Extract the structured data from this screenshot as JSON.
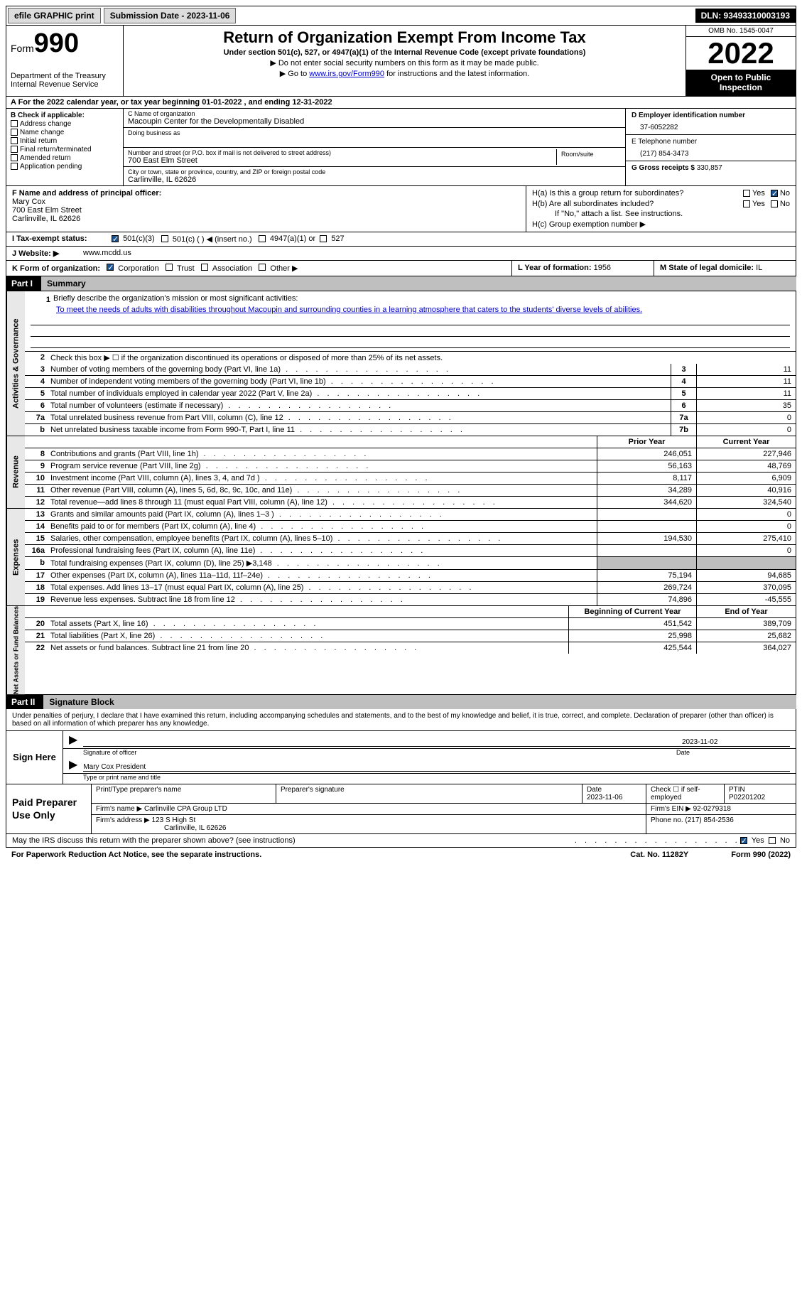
{
  "topbar": {
    "efile": "efile GRAPHIC print",
    "submission_label": "Submission Date - 2023-11-06",
    "dln": "DLN: 93493310003193"
  },
  "header": {
    "form_prefix": "Form",
    "form_num": "990",
    "dept": "Department of the Treasury",
    "irs": "Internal Revenue Service",
    "title": "Return of Organization Exempt From Income Tax",
    "subtitle": "Under section 501(c), 527, or 4947(a)(1) of the Internal Revenue Code (except private foundations)",
    "note1": "▶ Do not enter social security numbers on this form as it may be made public.",
    "note2_pre": "▶ Go to ",
    "note2_link": "www.irs.gov/Form990",
    "note2_post": " for instructions and the latest information.",
    "omb": "OMB No. 1545-0047",
    "year": "2022",
    "inspect": "Open to Public Inspection"
  },
  "section_a": "A For the 2022 calendar year, or tax year beginning 01-01-2022    , and ending 12-31-2022",
  "col_b": {
    "label": "B Check if applicable:",
    "addr": "Address change",
    "name": "Name change",
    "initial": "Initial return",
    "final": "Final return/terminated",
    "amended": "Amended return",
    "app": "Application pending"
  },
  "col_c": {
    "name_label": "C Name of organization",
    "name_val": "Macoupin Center for the Developmentally Disabled",
    "dba_label": "Doing business as",
    "dba_val": "",
    "addr_label": "Number and street (or P.O. box if mail is not delivered to street address)",
    "addr_val": "700 East Elm Street",
    "room_label": "Room/suite",
    "city_label": "City or town, state or province, country, and ZIP or foreign postal code",
    "city_val": "Carlinville, IL  62626"
  },
  "col_d": {
    "ein_label": "D Employer identification number",
    "ein_val": "37-6052282",
    "tel_label": "E Telephone number",
    "tel_val": "(217) 854-3473",
    "gross_label": "G Gross receipts $",
    "gross_val": "330,857"
  },
  "row_f": {
    "label": "F  Name and address of principal officer:",
    "name": "Mary Cox",
    "addr1": "700 East Elm Street",
    "addr2": "Carlinville, IL  62626"
  },
  "row_h": {
    "ha": "H(a)  Is this a group return for subordinates?",
    "hb": "H(b)  Are all subordinates included?",
    "hb_note": "If \"No,\" attach a list. See instructions.",
    "hc": "H(c)  Group exemption number ▶",
    "yes": "Yes",
    "no": "No"
  },
  "row_i": {
    "label": "I    Tax-exempt status:",
    "c3": "501(c)(3)",
    "c_other": "501(c) (  ) ◀ (insert no.)",
    "a1": "4947(a)(1) or",
    "s527": "527"
  },
  "row_j": {
    "label": "J    Website: ▶",
    "val": "www.mcdd.us"
  },
  "row_k": {
    "label": "K Form of organization:",
    "corp": "Corporation",
    "trust": "Trust",
    "assoc": "Association",
    "other": "Other ▶",
    "l_label": "L Year of formation:",
    "l_val": "1956",
    "m_label": "M State of legal domicile:",
    "m_val": "IL"
  },
  "part1": {
    "num": "Part I",
    "title": "Summary"
  },
  "summary": {
    "tab1": "Activities & Governance",
    "tab2": "Revenue",
    "tab3": "Expenses",
    "tab4": "Net Assets or Fund Balances",
    "line1_label": "Briefly describe the organization's mission or most significant activities:",
    "line1_text": "To meet the needs of adults with disabilities throughout Macoupin and surrounding counties in a learning atmosphere that caters to the students' diverse levels of abilities.",
    "line2": "Check this box ▶ ☐ if the organization discontinued its operations or disposed of more than 25% of its net assets.",
    "rows_gov": [
      {
        "n": "3",
        "t": "Number of voting members of the governing body (Part VI, line 1a)",
        "b": "3",
        "v": "11"
      },
      {
        "n": "4",
        "t": "Number of independent voting members of the governing body (Part VI, line 1b)",
        "b": "4",
        "v": "11"
      },
      {
        "n": "5",
        "t": "Total number of individuals employed in calendar year 2022 (Part V, line 2a)",
        "b": "5",
        "v": "11"
      },
      {
        "n": "6",
        "t": "Total number of volunteers (estimate if necessary)",
        "b": "6",
        "v": "35"
      },
      {
        "n": "7a",
        "t": "Total unrelated business revenue from Part VIII, column (C), line 12",
        "b": "7a",
        "v": "0"
      },
      {
        "n": "b",
        "t": "Net unrelated business taxable income from Form 990-T, Part I, line 11",
        "b": "7b",
        "v": "0"
      }
    ],
    "col_prior": "Prior Year",
    "col_current": "Current Year",
    "rows_rev": [
      {
        "n": "8",
        "t": "Contributions and grants (Part VIII, line 1h)",
        "p": "246,051",
        "c": "227,946"
      },
      {
        "n": "9",
        "t": "Program service revenue (Part VIII, line 2g)",
        "p": "56,163",
        "c": "48,769"
      },
      {
        "n": "10",
        "t": "Investment income (Part VIII, column (A), lines 3, 4, and 7d )",
        "p": "8,117",
        "c": "6,909"
      },
      {
        "n": "11",
        "t": "Other revenue (Part VIII, column (A), lines 5, 6d, 8c, 9c, 10c, and 11e)",
        "p": "34,289",
        "c": "40,916"
      },
      {
        "n": "12",
        "t": "Total revenue—add lines 8 through 11 (must equal Part VIII, column (A), line 12)",
        "p": "344,620",
        "c": "324,540"
      }
    ],
    "rows_exp": [
      {
        "n": "13",
        "t": "Grants and similar amounts paid (Part IX, column (A), lines 1–3 )",
        "p": "",
        "c": "0"
      },
      {
        "n": "14",
        "t": "Benefits paid to or for members (Part IX, column (A), line 4)",
        "p": "",
        "c": "0"
      },
      {
        "n": "15",
        "t": "Salaries, other compensation, employee benefits (Part IX, column (A), lines 5–10)",
        "p": "194,530",
        "c": "275,410"
      },
      {
        "n": "16a",
        "t": "Professional fundraising fees (Part IX, column (A), line 11e)",
        "p": "",
        "c": "0"
      },
      {
        "n": "b",
        "t": "Total fundraising expenses (Part IX, column (D), line 25) ▶3,148",
        "p": "GREY",
        "c": "GREY"
      },
      {
        "n": "17",
        "t": "Other expenses (Part IX, column (A), lines 11a–11d, 11f–24e)",
        "p": "75,194",
        "c": "94,685"
      },
      {
        "n": "18",
        "t": "Total expenses. Add lines 13–17 (must equal Part IX, column (A), line 25)",
        "p": "269,724",
        "c": "370,095"
      },
      {
        "n": "19",
        "t": "Revenue less expenses. Subtract line 18 from line 12",
        "p": "74,896",
        "c": "-45,555"
      }
    ],
    "col_begin": "Beginning of Current Year",
    "col_end": "End of Year",
    "rows_net": [
      {
        "n": "20",
        "t": "Total assets (Part X, line 16)",
        "p": "451,542",
        "c": "389,709"
      },
      {
        "n": "21",
        "t": "Total liabilities (Part X, line 26)",
        "p": "25,998",
        "c": "25,682"
      },
      {
        "n": "22",
        "t": "Net assets or fund balances. Subtract line 21 from line 20",
        "p": "425,544",
        "c": "364,027"
      }
    ]
  },
  "part2": {
    "num": "Part II",
    "title": "Signature Block"
  },
  "sig": {
    "intro": "Under penalties of perjury, I declare that I have examined this return, including accompanying schedules and statements, and to the best of my knowledge and belief, it is true, correct, and complete. Declaration of preparer (other than officer) is based on all information of which preparer has any knowledge.",
    "sign_here": "Sign Here",
    "sig_officer": "Signature of officer",
    "date": "Date",
    "date_val": "2023-11-02",
    "name_title": "Mary Cox  President",
    "name_label": "Type or print name and title"
  },
  "prep": {
    "label": "Paid Preparer Use Only",
    "print_name": "Print/Type preparer's name",
    "prep_sig": "Preparer's signature",
    "date_label": "Date",
    "date_val": "2023-11-06",
    "check_label": "Check ☐ if self-employed",
    "ptin_label": "PTIN",
    "ptin_val": "P02201202",
    "firm_name_label": "Firm's name    ▶",
    "firm_name": "Carlinville CPA Group LTD",
    "firm_ein_label": "Firm's EIN ▶",
    "firm_ein": "92-0279318",
    "firm_addr_label": "Firm's address ▶",
    "firm_addr1": "123 S High St",
    "firm_addr2": "Carlinville, IL  62626",
    "phone_label": "Phone no.",
    "phone_val": "(217) 854-2536"
  },
  "footer": {
    "discuss": "May the IRS discuss this return with the preparer shown above? (see instructions)",
    "yes": "Yes",
    "no": "No",
    "paperwork": "For Paperwork Reduction Act Notice, see the separate instructions.",
    "cat": "Cat. No. 11282Y",
    "form": "Form 990 (2022)"
  }
}
